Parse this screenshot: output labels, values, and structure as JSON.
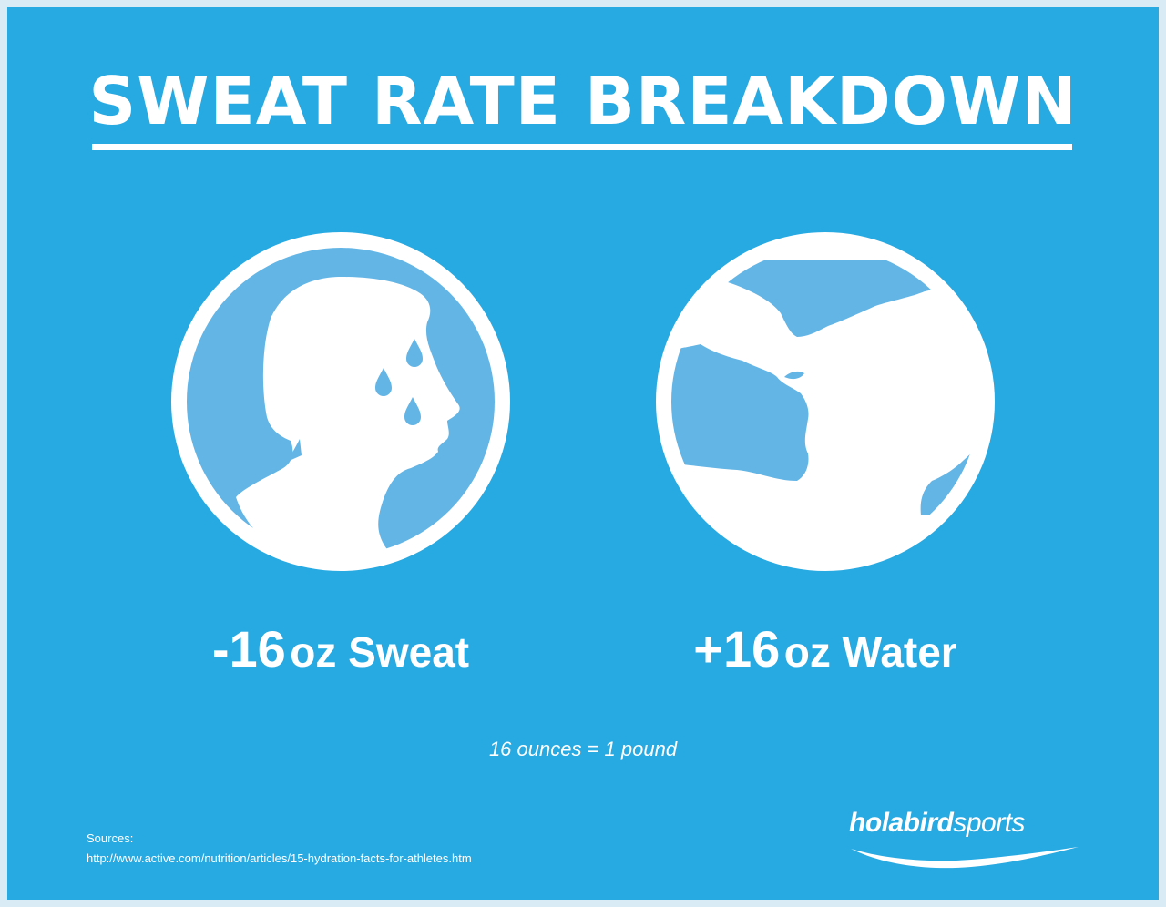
{
  "title": "SWEAT RATE BREAKDOWN",
  "illustrations": {
    "left": "sweating-head-icon",
    "right": "drinking-water-icon"
  },
  "stats": {
    "sweat": {
      "number": "-16",
      "unit": "oz Sweat"
    },
    "water": {
      "number": "+16",
      "unit": "oz Water"
    }
  },
  "note": "16 ounces = 1 pound",
  "sources": {
    "label": "Sources:",
    "url": "http://www.active.com/nutrition/articles/15-hydration-facts-for-athletes.htm"
  },
  "logo": {
    "part1": "holabird",
    "part2": "sports"
  },
  "colors": {
    "background": "#27a9e2",
    "circle_fill": "#63b5e6",
    "foreground": "#ffffff"
  }
}
